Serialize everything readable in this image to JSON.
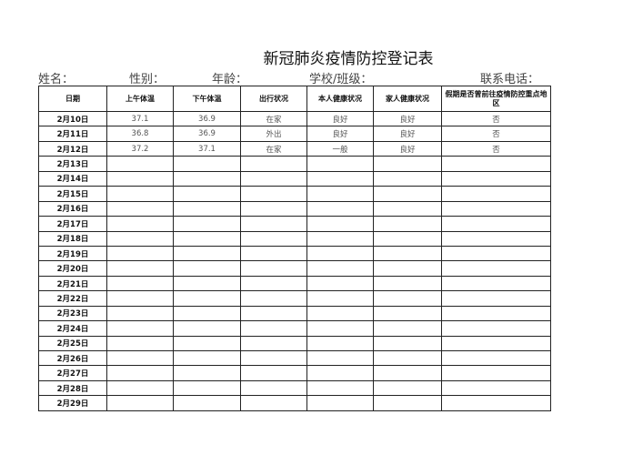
{
  "title": "新冠肺炎疫情防控登记表",
  "info": {
    "name": "姓名：",
    "gender": "性别：",
    "age": "年龄：",
    "school": "学校/班级：",
    "phone": "联系电话："
  },
  "headers": [
    "日期",
    "上午体温",
    "下午体温",
    "出行状况",
    "本人健康状况",
    "家人健康状况",
    "假期是否曾前往疫情防控重点地区"
  ],
  "rows": [
    [
      "2月10日",
      "37.1",
      "36.9",
      "在家",
      "良好",
      "良好",
      "否"
    ],
    [
      "2月11日",
      "36.8",
      "36.9",
      "外出",
      "良好",
      "良好",
      "否"
    ],
    [
      "2月12日",
      "37.2",
      "37.1",
      "在家",
      "一般",
      "良好",
      "否"
    ],
    [
      "2月13日",
      "",
      "",
      "",
      "",
      "",
      ""
    ],
    [
      "2月14日",
      "",
      "",
      "",
      "",
      "",
      ""
    ],
    [
      "2月15日",
      "",
      "",
      "",
      "",
      "",
      ""
    ],
    [
      "2月16日",
      "",
      "",
      "",
      "",
      "",
      ""
    ],
    [
      "2月17日",
      "",
      "",
      "",
      "",
      "",
      ""
    ],
    [
      "2月18日",
      "",
      "",
      "",
      "",
      "",
      ""
    ],
    [
      "2月19日",
      "",
      "",
      "",
      "",
      "",
      ""
    ],
    [
      "2月20日",
      "",
      "",
      "",
      "",
      "",
      ""
    ],
    [
      "2月21日",
      "",
      "",
      "",
      "",
      "",
      ""
    ],
    [
      "2月22日",
      "",
      "",
      "",
      "",
      "",
      ""
    ],
    [
      "2月23日",
      "",
      "",
      "",
      "",
      "",
      ""
    ],
    [
      "2月24日",
      "",
      "",
      "",
      "",
      "",
      ""
    ],
    [
      "2月25日",
      "",
      "",
      "",
      "",
      "",
      ""
    ],
    [
      "2月26日",
      "",
      "",
      "",
      "",
      "",
      ""
    ],
    [
      "2月27日",
      "",
      "",
      "",
      "",
      "",
      ""
    ],
    [
      "2月28日",
      "",
      "",
      "",
      "",
      "",
      ""
    ],
    [
      "2月29日",
      "",
      "",
      "",
      "",
      "",
      ""
    ]
  ]
}
